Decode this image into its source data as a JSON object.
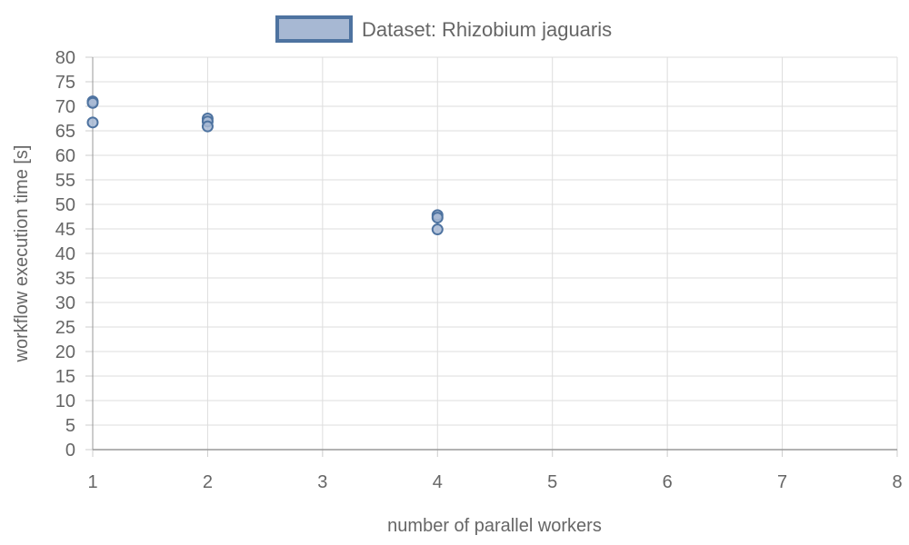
{
  "chart_data": {
    "type": "scatter",
    "title": "",
    "xlabel": "number of parallel workers",
    "ylabel": "workflow execution time [s]",
    "xlim": [
      1,
      8
    ],
    "ylim": [
      0,
      80
    ],
    "x_ticks": [
      1,
      2,
      3,
      4,
      5,
      6,
      7,
      8
    ],
    "y_ticks": [
      0,
      5,
      10,
      15,
      20,
      25,
      30,
      35,
      40,
      45,
      50,
      55,
      60,
      65,
      70,
      75,
      80
    ],
    "grid": true,
    "legend_position": "top-center",
    "series": [
      {
        "name": "Dataset: Rhizobium jaguaris",
        "color": "#4e73a0",
        "fill": "#a7b8d3",
        "points": [
          {
            "x": 1,
            "y": 71.0
          },
          {
            "x": 1,
            "y": 70.7
          },
          {
            "x": 1,
            "y": 66.7
          },
          {
            "x": 2,
            "y": 67.5
          },
          {
            "x": 2,
            "y": 66.9
          },
          {
            "x": 2,
            "y": 65.9
          },
          {
            "x": 4,
            "y": 47.8
          },
          {
            "x": 4,
            "y": 47.3
          },
          {
            "x": 4,
            "y": 44.9
          }
        ]
      }
    ]
  }
}
